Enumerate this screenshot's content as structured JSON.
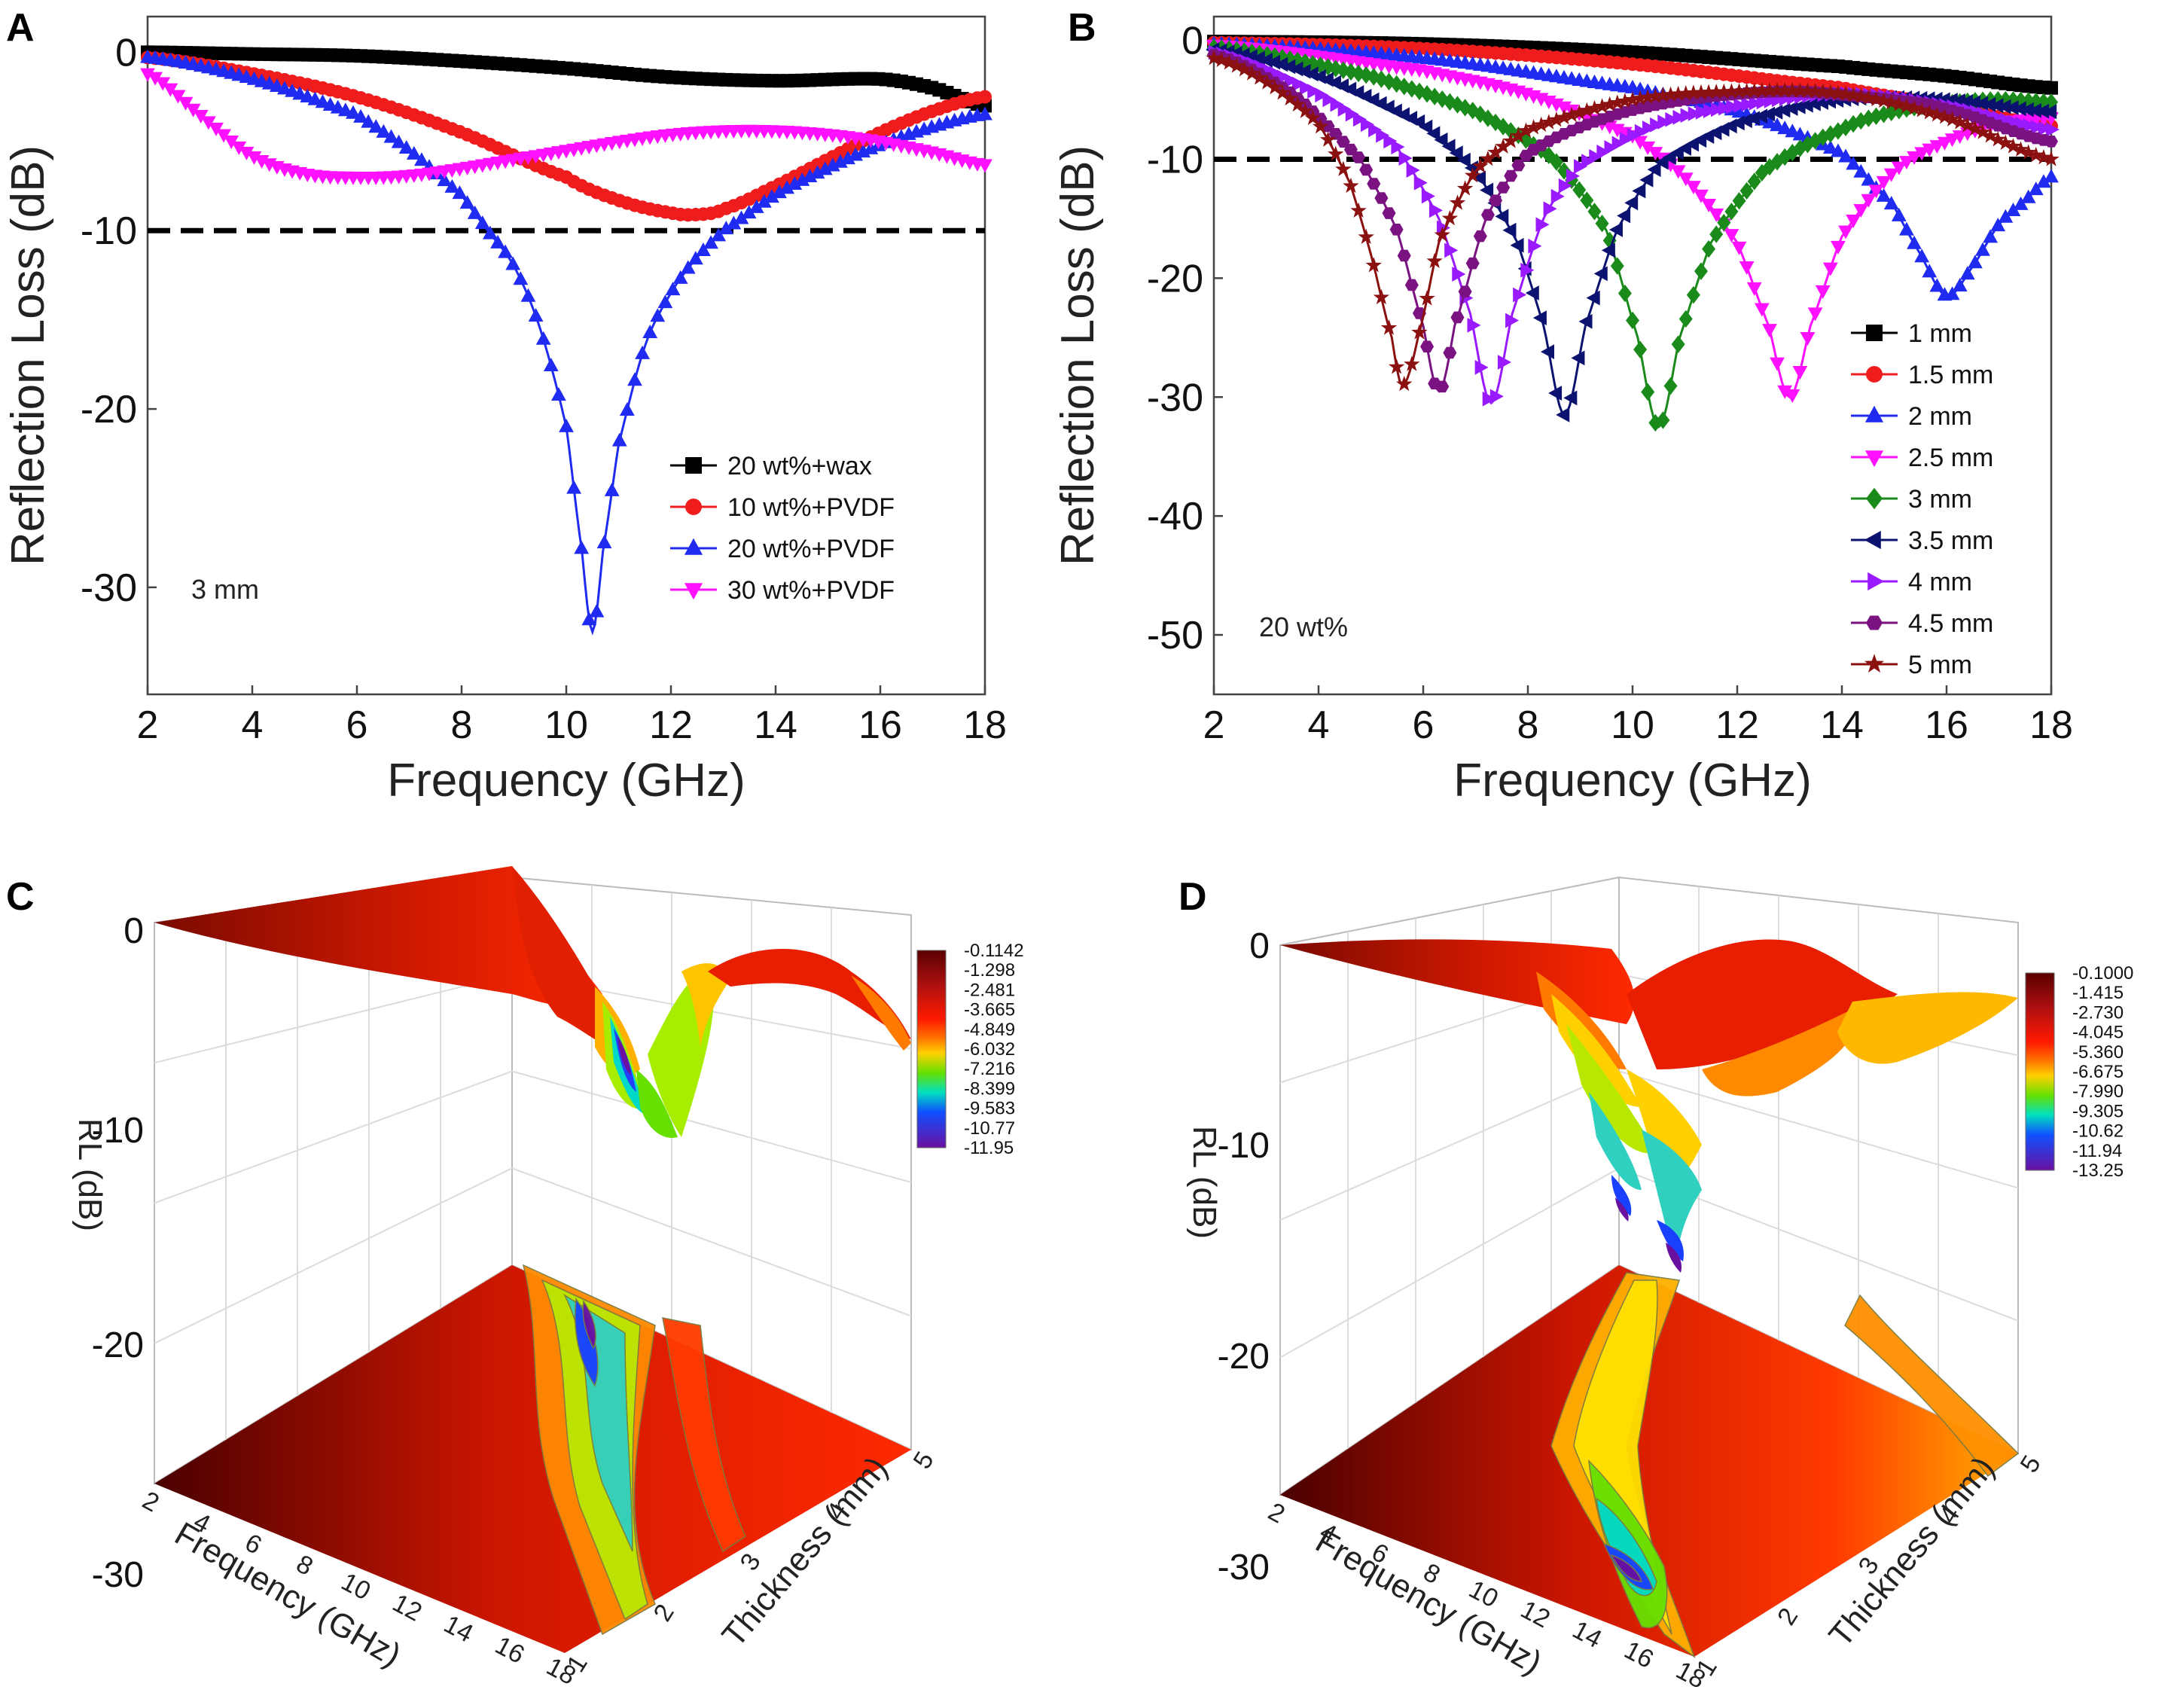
{
  "chart_data": [
    {
      "id": "A",
      "panel_label": "A",
      "type": "line",
      "xlabel": "Frequency (GHz)",
      "ylabel": "Reflection Loss (dB)",
      "xlim": [
        2,
        18
      ],
      "ylim": [
        -36,
        2
      ],
      "xticks": [
        "2",
        "4",
        "6",
        "8",
        "10",
        "12",
        "14",
        "16",
        "18"
      ],
      "yticks": [
        "0",
        "-10",
        "-20",
        "-30"
      ],
      "reference_line": -10,
      "annotation": "3 mm",
      "series": [
        {
          "name": "20 wt%+wax",
          "color": "#000000",
          "marker": "square",
          "points": [
            [
              2,
              0
            ],
            [
              4,
              -0.1
            ],
            [
              6,
              -0.2
            ],
            [
              8,
              -0.5
            ],
            [
              10,
              -0.9
            ],
            [
              12,
              -1.4
            ],
            [
              14,
              -1.6
            ],
            [
              16,
              -1.5
            ],
            [
              17,
              -2.0
            ],
            [
              18,
              -3.0
            ]
          ]
        },
        {
          "name": "10 wt%+PVDF",
          "color": "#ee1c1c",
          "marker": "circle",
          "points": [
            [
              2,
              -0.3
            ],
            [
              4,
              -1.2
            ],
            [
              6,
              -2.5
            ],
            [
              8,
              -4.5
            ],
            [
              10,
              -7.0
            ],
            [
              11,
              -8.3
            ],
            [
              12,
              -9.0
            ],
            [
              12.5,
              -9.1
            ],
            [
              13,
              -8.8
            ],
            [
              14,
              -7.5
            ],
            [
              15,
              -6.0
            ],
            [
              16,
              -4.5
            ],
            [
              17,
              -3.3
            ],
            [
              18,
              -2.5
            ]
          ]
        },
        {
          "name": "20 wt%+PVDF",
          "color": "#1f2bf0",
          "marker": "triangle-up",
          "points": [
            [
              2,
              -0.3
            ],
            [
              4,
              -1.5
            ],
            [
              6,
              -3.5
            ],
            [
              7,
              -5.5
            ],
            [
              8,
              -8.0
            ],
            [
              8.5,
              -10.0
            ],
            [
              9,
              -12.0
            ],
            [
              9.5,
              -15.5
            ],
            [
              10,
              -21.0
            ],
            [
              10.3,
              -28.0
            ],
            [
              10.5,
              -32.5
            ],
            [
              10.7,
              -28.0
            ],
            [
              11,
              -22.0
            ],
            [
              11.5,
              -16.5
            ],
            [
              12,
              -13.5
            ],
            [
              12.5,
              -11.5
            ],
            [
              13,
              -10.0
            ],
            [
              14,
              -8.0
            ],
            [
              15,
              -6.5
            ],
            [
              16,
              -5.2
            ],
            [
              17,
              -4.2
            ],
            [
              18,
              -3.5
            ]
          ]
        },
        {
          "name": "30 wt%+PVDF",
          "color": "#ff10ff",
          "marker": "triangle-down",
          "points": [
            [
              2,
              -1.2
            ],
            [
              3,
              -3.5
            ],
            [
              4,
              -5.8
            ],
            [
              5,
              -6.8
            ],
            [
              6,
              -7.0
            ],
            [
              7,
              -6.9
            ],
            [
              8,
              -6.5
            ],
            [
              9,
              -6.0
            ],
            [
              10,
              -5.5
            ],
            [
              11,
              -5.0
            ],
            [
              12,
              -4.6
            ],
            [
              13,
              -4.4
            ],
            [
              14,
              -4.4
            ],
            [
              15,
              -4.6
            ],
            [
              16,
              -5.0
            ],
            [
              17,
              -5.6
            ],
            [
              18,
              -6.3
            ]
          ]
        }
      ]
    },
    {
      "id": "B",
      "panel_label": "B",
      "type": "line",
      "xlabel": "Frequency (GHz)",
      "ylabel": "Reflection Loss (dB)",
      "xlim": [
        2,
        18
      ],
      "ylim": [
        -55,
        2
      ],
      "xticks": [
        "2",
        "4",
        "6",
        "8",
        "10",
        "12",
        "14",
        "16",
        "18"
      ],
      "yticks": [
        "0",
        "-10",
        "-20",
        "-30",
        "-40",
        "-50"
      ],
      "reference_line": -10,
      "annotation": "20 wt%",
      "series": [
        {
          "name": "1 mm",
          "color": "#000000",
          "marker": "square",
          "points": [
            [
              2,
              -0.1
            ],
            [
              6,
              -0.3
            ],
            [
              10,
              -1.0
            ],
            [
              14,
              -2.2
            ],
            [
              16,
              -3.0
            ],
            [
              18,
              -4.0
            ]
          ]
        },
        {
          "name": "1.5 mm",
          "color": "#ee1c1c",
          "marker": "circle",
          "points": [
            [
              2,
              -0.2
            ],
            [
              6,
              -0.7
            ],
            [
              10,
              -2.0
            ],
            [
              14,
              -4.0
            ],
            [
              16,
              -5.5
            ],
            [
              18,
              -7.2
            ]
          ]
        },
        {
          "name": "2 mm",
          "color": "#1f2bf0",
          "marker": "triangle-up",
          "points": [
            [
              2,
              -0.3
            ],
            [
              6,
              -1.5
            ],
            [
              10,
              -4.0
            ],
            [
              12,
              -6.0
            ],
            [
              14,
              -9.5
            ],
            [
              15,
              -14.0
            ],
            [
              15.5,
              -18.0
            ],
            [
              16,
              -21.5
            ],
            [
              16.5,
              -19.0
            ],
            [
              17,
              -15.5
            ],
            [
              17.5,
              -13.5
            ],
            [
              18,
              -11.5
            ]
          ]
        },
        {
          "name": "2.5 mm",
          "color": "#ff10ff",
          "marker": "triangle-down",
          "points": [
            [
              2,
              -0.4
            ],
            [
              6,
              -2.5
            ],
            [
              8,
              -4.5
            ],
            [
              10,
              -8.0
            ],
            [
              11,
              -11.5
            ],
            [
              12,
              -17.0
            ],
            [
              12.6,
              -24.0
            ],
            [
              13,
              -30.0
            ],
            [
              13.4,
              -24.0
            ],
            [
              14,
              -16.5
            ],
            [
              15,
              -11.0
            ],
            [
              16,
              -8.5
            ],
            [
              17,
              -7.0
            ],
            [
              18,
              -6.5
            ]
          ]
        },
        {
          "name": "3 mm",
          "color": "#1a8a1a",
          "marker": "diamond",
          "points": [
            [
              2,
              -0.6
            ],
            [
              5,
              -3.0
            ],
            [
              7,
              -6.0
            ],
            [
              8.5,
              -10.0
            ],
            [
              9.5,
              -16.0
            ],
            [
              10.1,
              -25.0
            ],
            [
              10.5,
              -32.5
            ],
            [
              10.9,
              -25.0
            ],
            [
              11.5,
              -17.0
            ],
            [
              12.5,
              -11.0
            ],
            [
              14,
              -7.5
            ],
            [
              15,
              -6.0
            ],
            [
              16,
              -5.3
            ],
            [
              17,
              -5.0
            ],
            [
              18,
              -5.2
            ]
          ]
        },
        {
          "name": "3.5 mm",
          "color": "#0b1270",
          "marker": "triangle-left",
          "points": [
            [
              2,
              -0.8
            ],
            [
              4,
              -3.0
            ],
            [
              6,
              -7.0
            ],
            [
              7,
              -11.0
            ],
            [
              7.8,
              -17.0
            ],
            [
              8.3,
              -24.0
            ],
            [
              8.7,
              -31.5
            ],
            [
              9.1,
              -24.0
            ],
            [
              9.7,
              -16.0
            ],
            [
              10.5,
              -10.5
            ],
            [
              12,
              -7.0
            ],
            [
              14,
              -5.0
            ],
            [
              16,
              -5.0
            ],
            [
              18,
              -6.0
            ]
          ]
        },
        {
          "name": "4 mm",
          "color": "#9a1aff",
          "marker": "triangle-right",
          "points": [
            [
              2,
              -1.0
            ],
            [
              4,
              -4.5
            ],
            [
              5.5,
              -9.0
            ],
            [
              6.3,
              -15.0
            ],
            [
              6.9,
              -23.0
            ],
            [
              7.3,
              -30.5
            ],
            [
              7.7,
              -23.0
            ],
            [
              8.3,
              -15.0
            ],
            [
              9,
              -10.5
            ],
            [
              10.5,
              -7.0
            ],
            [
              12,
              -5.5
            ],
            [
              14,
              -4.5
            ],
            [
              16,
              -5.5
            ],
            [
              18,
              -7.5
            ]
          ]
        },
        {
          "name": "4.5 mm",
          "color": "#7a1282",
          "marker": "hexagon",
          "points": [
            [
              2,
              -1.2
            ],
            [
              3.5,
              -4.5
            ],
            [
              4.8,
              -10.0
            ],
            [
              5.5,
              -16.0
            ],
            [
              6.0,
              -24.0
            ],
            [
              6.3,
              -29.5
            ],
            [
              6.6,
              -24.0
            ],
            [
              7.2,
              -15.0
            ],
            [
              8,
              -9.5
            ],
            [
              9.5,
              -6.5
            ],
            [
              11,
              -5.0
            ],
            [
              13,
              -4.3
            ],
            [
              15,
              -5.0
            ],
            [
              16,
              -5.8
            ],
            [
              18,
              -8.5
            ]
          ]
        },
        {
          "name": "5 mm",
          "color": "#8b1010",
          "marker": "star",
          "points": [
            [
              2,
              -1.5
            ],
            [
              3,
              -3.5
            ],
            [
              4,
              -7.0
            ],
            [
              4.6,
              -12.0
            ],
            [
              5.0,
              -18.0
            ],
            [
              5.4,
              -25.0
            ],
            [
              5.6,
              -29.0
            ],
            [
              5.9,
              -25.0
            ],
            [
              6.3,
              -17.0
            ],
            [
              7,
              -11.0
            ],
            [
              8,
              -7.5
            ],
            [
              10,
              -5.0
            ],
            [
              12,
              -4.3
            ],
            [
              14,
              -4.5
            ],
            [
              16,
              -6.5
            ],
            [
              18,
              -10.0
            ]
          ]
        }
      ]
    },
    {
      "id": "C",
      "panel_label": "C",
      "type": "surface",
      "zlabel": "RL (dB)",
      "xlabel": "Frequency (GHz)",
      "ylabel": "Thickness (mm)",
      "zticks": [
        "0",
        "-10",
        "-20",
        "-30"
      ],
      "freq_ticks": [
        "2",
        "4",
        "6",
        "8",
        "10",
        "12",
        "14",
        "16",
        "18"
      ],
      "thick_ticks": [
        "1",
        "2",
        "3",
        "4",
        "5"
      ],
      "colorbar": [
        "-0.1142",
        "-1.298",
        "-2.481",
        "-3.665",
        "-4.849",
        "-6.032",
        "-7.216",
        "-8.399",
        "-9.583",
        "-10.77",
        "-11.95"
      ]
    },
    {
      "id": "D",
      "panel_label": "D",
      "type": "surface",
      "zlabel": "RL (dB)",
      "xlabel": "Frequency (GHz)",
      "ylabel": "Thickness (mm)",
      "zticks": [
        "0",
        "-10",
        "-20",
        "-30"
      ],
      "freq_ticks": [
        "2",
        "4",
        "6",
        "8",
        "10",
        "12",
        "14",
        "16",
        "18"
      ],
      "thick_ticks": [
        "1",
        "2",
        "3",
        "4",
        "5"
      ],
      "colorbar": [
        "-0.1000",
        "-1.415",
        "-2.730",
        "-4.045",
        "-5.360",
        "-6.675",
        "-7.990",
        "-9.305",
        "-10.62",
        "-11.94",
        "-13.25"
      ]
    }
  ]
}
